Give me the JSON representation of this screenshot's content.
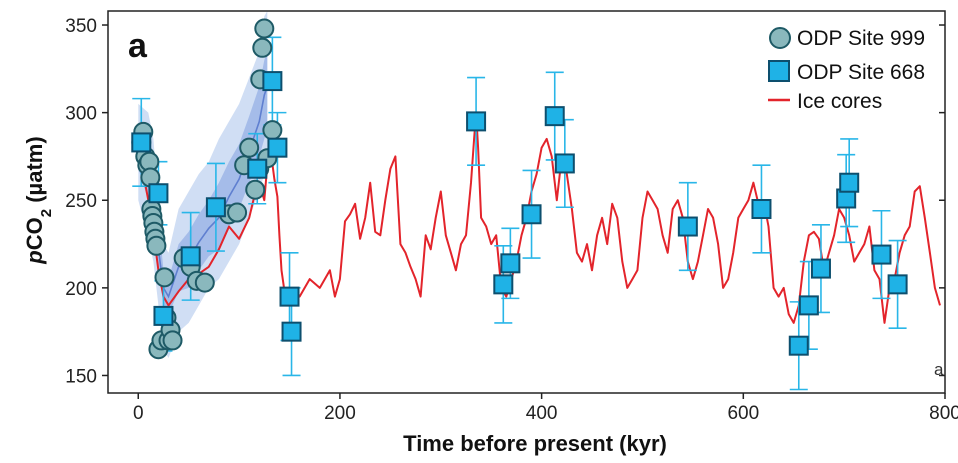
{
  "chart_data": {
    "type": "scatter",
    "panel_label": "a",
    "corner_label": "a",
    "xlabel": "Time before present (kyr)",
    "ylabel": {
      "prefix": "p",
      "main": "CO",
      "sub": "2",
      "unit": " (µatm)"
    },
    "xlim": [
      -30,
      800
    ],
    "ylim": [
      140,
      358
    ],
    "xticks": [
      0,
      200,
      400,
      600,
      800
    ],
    "yticks": [
      150,
      200,
      250,
      300,
      350
    ],
    "grid": false,
    "legend_position": "top-right",
    "colors": {
      "site999_fill": "#8ab8bd",
      "site999_edge": "#1e5a66",
      "site668_fill": "#1fb2e6",
      "site668_edge": "#0d4f6e",
      "errorbar": "#29b6e8",
      "ice": "#e3242b",
      "band_outer": "#c8d8f2",
      "band_inner": "#9db6e6",
      "band_line": "#5f7fd0"
    },
    "series": [
      {
        "name": "ODP Site 999",
        "marker": "circle",
        "points": [
          [
            3,
            283
          ],
          [
            5,
            289
          ],
          [
            7,
            275
          ],
          [
            9,
            270
          ],
          [
            11,
            272
          ],
          [
            12,
            263
          ],
          [
            13,
            245
          ],
          [
            14,
            241
          ],
          [
            15,
            237
          ],
          [
            16,
            232
          ],
          [
            17,
            228
          ],
          [
            18,
            224
          ],
          [
            20,
            165
          ],
          [
            23,
            170
          ],
          [
            26,
            206
          ],
          [
            28,
            183
          ],
          [
            30,
            170
          ],
          [
            32,
            176
          ],
          [
            34,
            170
          ],
          [
            45,
            217
          ],
          [
            52,
            212
          ],
          [
            58,
            204
          ],
          [
            66,
            203
          ],
          [
            90,
            242
          ],
          [
            98,
            243
          ],
          [
            105,
            270
          ],
          [
            110,
            280
          ],
          [
            116,
            256
          ],
          [
            120,
            268
          ],
          [
            121,
            319
          ],
          [
            123,
            337
          ],
          [
            125,
            348
          ],
          [
            128,
            274
          ],
          [
            133,
            290
          ]
        ]
      },
      {
        "name": "ODP Site 668",
        "marker": "square",
        "points": [
          {
            "x": 3,
            "y": 283,
            "err": 25
          },
          {
            "x": 20,
            "y": 254,
            "err": 18
          },
          {
            "x": 25,
            "y": 184,
            "err": 20
          },
          {
            "x": 52,
            "y": 218,
            "err": 25
          },
          {
            "x": 77,
            "y": 246,
            "err": 25
          },
          {
            "x": 118,
            "y": 268,
            "err": 20
          },
          {
            "x": 133,
            "y": 318,
            "err": 25
          },
          {
            "x": 138,
            "y": 280,
            "err": 20
          },
          {
            "x": 150,
            "y": 195,
            "err": 25
          },
          {
            "x": 152,
            "y": 175,
            "err": 25
          },
          {
            "x": 335,
            "y": 295,
            "err": 25
          },
          {
            "x": 362,
            "y": 202,
            "err": 22
          },
          {
            "x": 369,
            "y": 214,
            "err": 20
          },
          {
            "x": 390,
            "y": 242,
            "err": 25
          },
          {
            "x": 413,
            "y": 298,
            "err": 25
          },
          {
            "x": 423,
            "y": 271,
            "err": 25
          },
          {
            "x": 545,
            "y": 235,
            "err": 25
          },
          {
            "x": 618,
            "y": 245,
            "err": 25
          },
          {
            "x": 655,
            "y": 167,
            "err": 25
          },
          {
            "x": 665,
            "y": 190,
            "err": 25
          },
          {
            "x": 677,
            "y": 211,
            "err": 25
          },
          {
            "x": 702,
            "y": 251,
            "err": 25
          },
          {
            "x": 705,
            "y": 260,
            "err": 25
          },
          {
            "x": 737,
            "y": 219,
            "err": 25
          },
          {
            "x": 753,
            "y": 202,
            "err": 25
          }
        ]
      },
      {
        "name": "Ice cores",
        "marker": "line",
        "x": [
          0,
          5,
          10,
          15,
          20,
          25,
          30,
          40,
          50,
          60,
          70,
          80,
          90,
          100,
          110,
          115,
          120,
          125,
          128,
          130,
          132,
          135,
          138,
          140,
          142,
          145,
          150,
          160,
          170,
          180,
          190,
          195,
          200,
          205,
          210,
          215,
          220,
          225,
          230,
          235,
          240,
          245,
          250,
          255,
          260,
          265,
          270,
          275,
          280,
          285,
          290,
          295,
          300,
          305,
          310,
          315,
          320,
          325,
          330,
          333,
          335,
          337,
          340,
          345,
          350,
          355,
          360,
          365,
          370,
          375,
          380,
          385,
          390,
          395,
          400,
          405,
          410,
          415,
          420,
          425,
          430,
          435,
          440,
          445,
          450,
          455,
          460,
          465,
          470,
          475,
          480,
          485,
          490,
          495,
          500,
          505,
          510,
          515,
          520,
          525,
          530,
          535,
          540,
          545,
          550,
          555,
          560,
          565,
          570,
          575,
          580,
          585,
          590,
          595,
          600,
          605,
          610,
          615,
          620,
          625,
          630,
          635,
          640,
          645,
          650,
          655,
          660,
          665,
          670,
          675,
          680,
          685,
          690,
          695,
          700,
          705,
          710,
          715,
          720,
          725,
          730,
          735,
          740,
          745,
          750,
          755,
          760,
          765,
          770,
          775,
          780,
          785,
          790,
          795
        ],
        "y": [
          280,
          265,
          250,
          232,
          210,
          195,
          190,
          198,
          205,
          208,
          212,
          222,
          235,
          228,
          240,
          252,
          260,
          250,
          270,
          285,
          275,
          262,
          252,
          230,
          210,
          198,
          200,
          195,
          205,
          200,
          210,
          195,
          205,
          238,
          242,
          248,
          228,
          240,
          260,
          232,
          230,
          250,
          268,
          275,
          225,
          220,
          212,
          205,
          195,
          230,
          222,
          240,
          255,
          230,
          220,
          210,
          225,
          230,
          260,
          285,
          300,
          280,
          240,
          235,
          225,
          230,
          200,
          195,
          205,
          215,
          230,
          240,
          255,
          265,
          280,
          285,
          275,
          250,
          275,
          265,
          245,
          220,
          215,
          225,
          210,
          230,
          240,
          225,
          248,
          240,
          215,
          200,
          205,
          210,
          240,
          255,
          250,
          245,
          230,
          220,
          245,
          250,
          240,
          215,
          205,
          215,
          230,
          245,
          240,
          225,
          200,
          205,
          220,
          240,
          245,
          250,
          260,
          248,
          250,
          235,
          200,
          195,
          200,
          185,
          180,
          190,
          215,
          230,
          232,
          228,
          210,
          220,
          230,
          245,
          240,
          230,
          215,
          220,
          225,
          235,
          210,
          205,
          180,
          200,
          205,
          220,
          230,
          235,
          255,
          258,
          240,
          220,
          200,
          190
        ]
      }
    ],
    "model_band": {
      "x": [
        0,
        10,
        15,
        20,
        25,
        30,
        40,
        50,
        60,
        70,
        80,
        90,
        100,
        110,
        120,
        125,
        128
      ],
      "outer_lo": [
        250,
        228,
        215,
        190,
        165,
        160,
        175,
        180,
        190,
        200,
        205,
        215,
        225,
        240,
        255,
        265,
        270
      ],
      "outer_hi": [
        305,
        300,
        285,
        250,
        225,
        220,
        245,
        255,
        265,
        272,
        285,
        295,
        305,
        320,
        335,
        355,
        358
      ],
      "inner_lo": [
        268,
        250,
        235,
        210,
        190,
        185,
        198,
        200,
        210,
        218,
        222,
        235,
        245,
        260,
        275,
        285,
        290
      ],
      "inner_hi": [
        292,
        280,
        268,
        240,
        210,
        205,
        225,
        232,
        242,
        250,
        260,
        272,
        282,
        298,
        315,
        330,
        335
      ],
      "mid": [
        280,
        265,
        250,
        222,
        200,
        195,
        212,
        216,
        226,
        234,
        240,
        252,
        262,
        278,
        295,
        310,
        315
      ]
    }
  }
}
